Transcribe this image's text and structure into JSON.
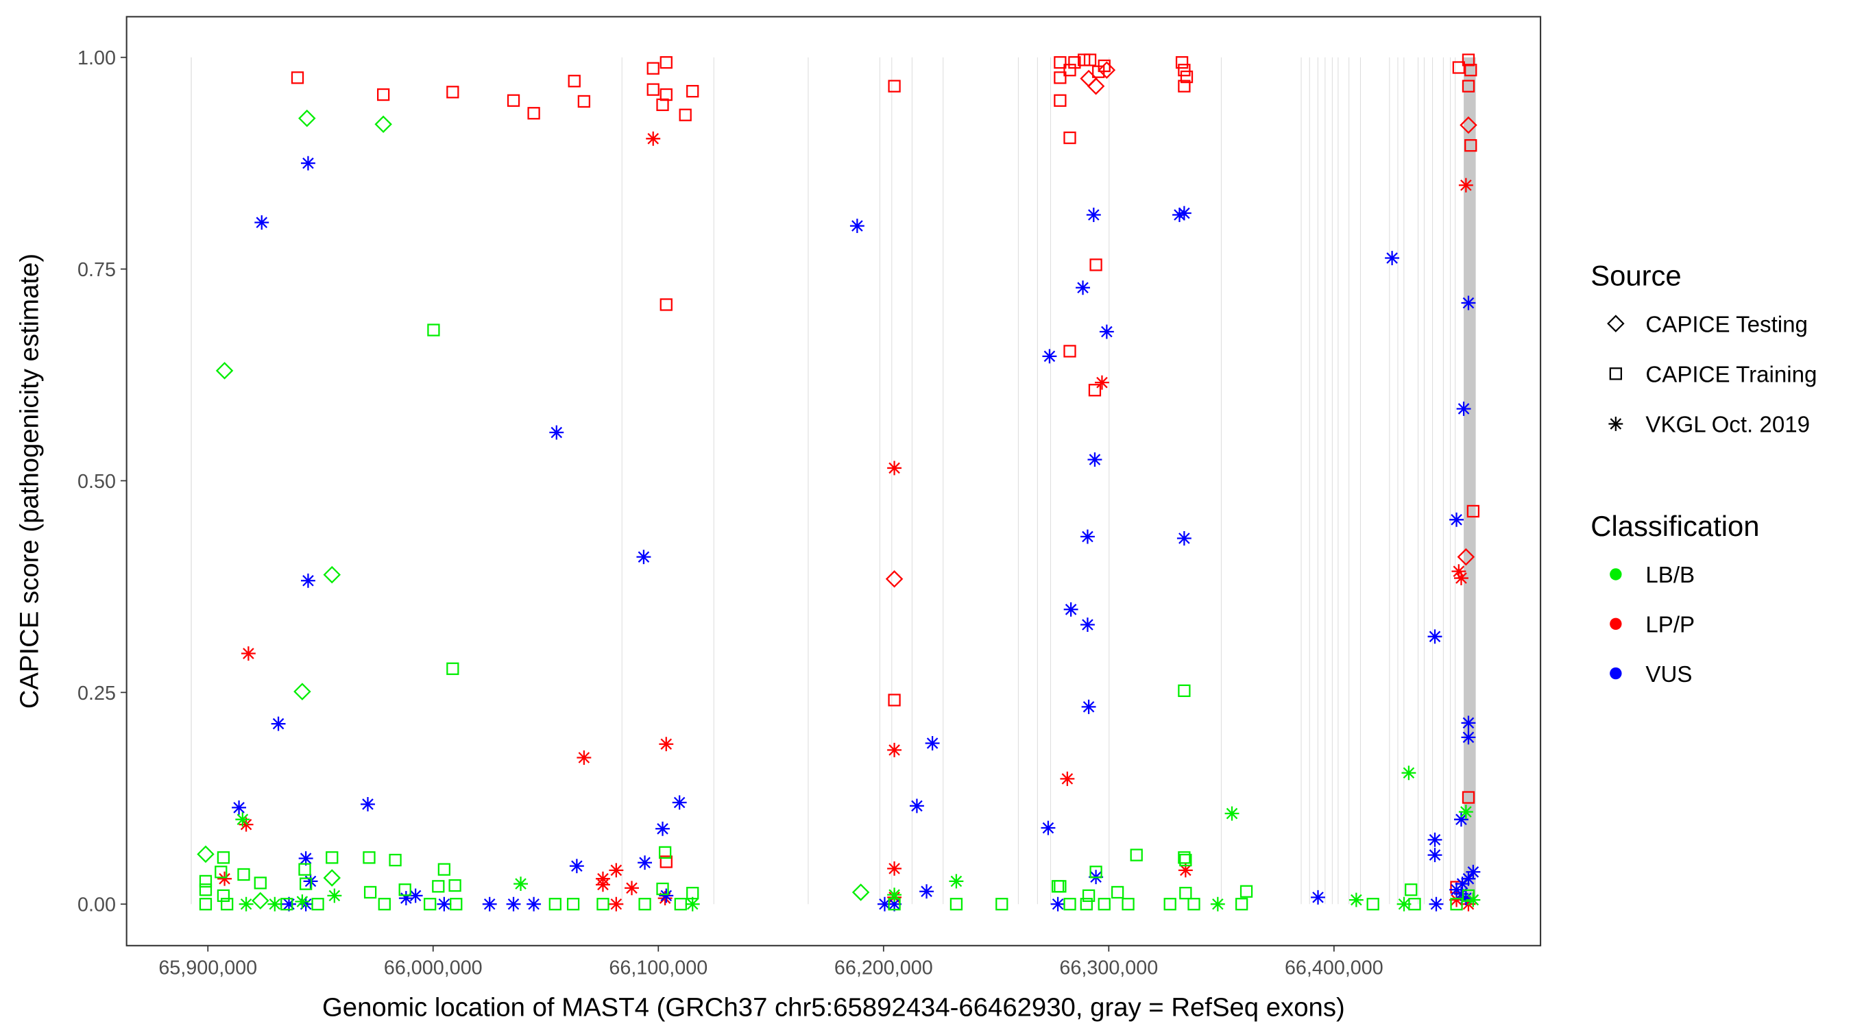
{
  "chart_data": {
    "type": "scatter",
    "title": "",
    "xlabel": "Genomic location of MAST4 (GRCh37 chr5:65892434-66462930, gray = RefSeq exons)",
    "ylabel": "CAPICE score (pathogenicity estimate)",
    "xlim": [
      65863900,
      66491700
    ],
    "ylim": [
      -0.049,
      1.048
    ],
    "x_ticks": [
      65900000,
      66000000,
      66100000,
      66200000,
      66300000,
      66400000
    ],
    "x_tick_labels": [
      "65,900,000",
      "66,000,000",
      "66,100,000",
      "66,200,000",
      "66,300,000",
      "66,400,000"
    ],
    "y_ticks": [
      0,
      0.25,
      0.5,
      0.75,
      1.0
    ],
    "y_tick_labels": [
      "0.00",
      "0.25",
      "0.50",
      "0.75",
      "1.00"
    ],
    "grid": false,
    "legend_placement": "right",
    "legend": {
      "source_title": "Source",
      "sources": [
        {
          "label": "CAPICE Testing",
          "shape": "diamond"
        },
        {
          "label": "CAPICE Training",
          "shape": "square"
        },
        {
          "label": "VKGL Oct. 2019",
          "shape": "asterisk"
        }
      ],
      "class_title": "Classification",
      "classes": [
        {
          "label": "LB/B",
          "color": "#00ee00"
        },
        {
          "label": "LP/P",
          "color": "#ff0000"
        },
        {
          "label": "VUS",
          "color": "#0000ff"
        }
      ]
    },
    "exon_color": "#bdbdbd",
    "exons": [
      [
        65892434,
        65892800
      ],
      [
        66083700,
        66084000
      ],
      [
        66124500,
        66124800
      ],
      [
        66166400,
        66166700
      ],
      [
        66198200,
        66198500
      ],
      [
        66203500,
        66203800
      ],
      [
        66212500,
        66212800
      ],
      [
        66226300,
        66226600
      ],
      [
        66259700,
        66260000
      ],
      [
        66268200,
        66268500
      ],
      [
        66274000,
        66274300
      ],
      [
        66300000,
        66300300
      ],
      [
        66349800,
        66350100
      ],
      [
        66385300,
        66385600
      ],
      [
        66389000,
        66389300
      ],
      [
        66392700,
        66393000
      ],
      [
        66395900,
        66396200
      ],
      [
        66399100,
        66399400
      ],
      [
        66401700,
        66402000
      ],
      [
        66406500,
        66406800
      ],
      [
        66411600,
        66411900
      ],
      [
        66424500,
        66424800
      ],
      [
        66428200,
        66428500
      ],
      [
        66430900,
        66431200
      ],
      [
        66437200,
        66437500
      ],
      [
        66439900,
        66440200
      ],
      [
        66443600,
        66443900
      ],
      [
        66448400,
        66448700
      ],
      [
        66451500,
        66451800
      ],
      [
        66453700,
        66454000
      ],
      [
        66457600,
        66462930
      ]
    ],
    "point_fields": [
      "position",
      "score",
      "source_index",
      "class_index"
    ],
    "points": [
      [
        65939800,
        0.976,
        1,
        1
      ],
      [
        65977900,
        0.956,
        1,
        1
      ],
      [
        66008700,
        0.959,
        1,
        1
      ],
      [
        66035700,
        0.949,
        1,
        1
      ],
      [
        66044700,
        0.934,
        1,
        1
      ],
      [
        66062700,
        0.972,
        1,
        1
      ],
      [
        66067000,
        0.948,
        1,
        1
      ],
      [
        66097700,
        0.987,
        1,
        1
      ],
      [
        66097700,
        0.962,
        1,
        1
      ],
      [
        66103500,
        0.994,
        1,
        1
      ],
      [
        66103500,
        0.956,
        1,
        1
      ],
      [
        66101900,
        0.944,
        1,
        1
      ],
      [
        66112000,
        0.932,
        1,
        1
      ],
      [
        66115200,
        0.96,
        1,
        1
      ],
      [
        66103500,
        0.708,
        1,
        1
      ],
      [
        66204800,
        0.966,
        1,
        1
      ],
      [
        66204800,
        0.241,
        1,
        1
      ],
      [
        66278400,
        0.994,
        1,
        1
      ],
      [
        66278400,
        0.976,
        1,
        1
      ],
      [
        66278400,
        0.949,
        1,
        1
      ],
      [
        66282700,
        0.985,
        1,
        1
      ],
      [
        66284800,
        0.994,
        1,
        1
      ],
      [
        66289000,
        0.997,
        1,
        1
      ],
      [
        66291700,
        0.997,
        1,
        1
      ],
      [
        66295400,
        0.983,
        1,
        1
      ],
      [
        66298000,
        0.99,
        1,
        1
      ],
      [
        66282700,
        0.905,
        1,
        1
      ],
      [
        66294300,
        0.755,
        1,
        1
      ],
      [
        66293800,
        0.607,
        1,
        1
      ],
      [
        66282700,
        0.653,
        1,
        1
      ],
      [
        66332500,
        0.994,
        1,
        1
      ],
      [
        66333500,
        0.985,
        1,
        1
      ],
      [
        66333500,
        0.966,
        1,
        1
      ],
      [
        66334600,
        0.977,
        1,
        1
      ],
      [
        66455400,
        0.988,
        1,
        1
      ],
      [
        66459700,
        0.997,
        1,
        1
      ],
      [
        66460700,
        0.985,
        1,
        1
      ],
      [
        66459700,
        0.966,
        1,
        1
      ],
      [
        66460700,
        0.896,
        1,
        1
      ],
      [
        66461800,
        0.464,
        1,
        1
      ],
      [
        66459700,
        0.126,
        1,
        1
      ],
      [
        66103500,
        0.05,
        1,
        1
      ],
      [
        66454400,
        0.02,
        1,
        1
      ],
      [
        66459700,
        0.92,
        0,
        1
      ],
      [
        66458600,
        0.41,
        0,
        1
      ],
      [
        66204800,
        0.384,
        0,
        1
      ],
      [
        66294300,
        0.966,
        0,
        1
      ],
      [
        66291100,
        0.975,
        0,
        1
      ],
      [
        66299100,
        0.985,
        0,
        1
      ],
      [
        66097700,
        0.904,
        2,
        1
      ],
      [
        66458600,
        0.849,
        2,
        1
      ],
      [
        66204800,
        0.515,
        2,
        1
      ],
      [
        65918000,
        0.296,
        2,
        1
      ],
      [
        66067000,
        0.173,
        2,
        1
      ],
      [
        66103500,
        0.189,
        2,
        1
      ],
      [
        66204800,
        0.182,
        2,
        1
      ],
      [
        66281600,
        0.148,
        2,
        1
      ],
      [
        66297000,
        0.616,
        2,
        1
      ],
      [
        66455400,
        0.393,
        2,
        1
      ],
      [
        66456500,
        0.385,
        2,
        1
      ],
      [
        65917000,
        0.094,
        2,
        1
      ],
      [
        65907400,
        0.03,
        2,
        1
      ],
      [
        66081300,
        0.04,
        2,
        1
      ],
      [
        66075400,
        0.023,
        2,
        1
      ],
      [
        66088200,
        0.019,
        2,
        1
      ],
      [
        66075400,
        0.03,
        2,
        1
      ],
      [
        66204800,
        0.042,
        2,
        1
      ],
      [
        66334100,
        0.04,
        2,
        1
      ],
      [
        66103000,
        0.007,
        2,
        1
      ],
      [
        66081300,
        0.0,
        2,
        1
      ],
      [
        66454400,
        0.005,
        2,
        1
      ],
      [
        66459700,
        0.0,
        2,
        1
      ],
      [
        66204800,
        0.008,
        2,
        1
      ],
      [
        65944500,
        0.875,
        2,
        2
      ],
      [
        65923900,
        0.805,
        2,
        2
      ],
      [
        66188300,
        0.801,
        2,
        2
      ],
      [
        66293300,
        0.814,
        2,
        2
      ],
      [
        66331400,
        0.814,
        2,
        2
      ],
      [
        66333500,
        0.816,
        2,
        2
      ],
      [
        66425800,
        0.763,
        2,
        2
      ],
      [
        66288500,
        0.728,
        2,
        2
      ],
      [
        66459700,
        0.71,
        2,
        2
      ],
      [
        66273700,
        0.647,
        2,
        2
      ],
      [
        66299100,
        0.676,
        2,
        2
      ],
      [
        66054800,
        0.557,
        2,
        2
      ],
      [
        66457600,
        0.585,
        2,
        2
      ],
      [
        66293800,
        0.525,
        2,
        2
      ],
      [
        66454400,
        0.454,
        2,
        2
      ],
      [
        66290600,
        0.434,
        2,
        2
      ],
      [
        66333500,
        0.432,
        2,
        2
      ],
      [
        66093500,
        0.41,
        2,
        2
      ],
      [
        65944500,
        0.382,
        2,
        2
      ],
      [
        66283200,
        0.348,
        2,
        2
      ],
      [
        66290600,
        0.33,
        2,
        2
      ],
      [
        66444800,
        0.316,
        2,
        2
      ],
      [
        65931300,
        0.213,
        2,
        2
      ],
      [
        66291100,
        0.233,
        2,
        2
      ],
      [
        66459700,
        0.214,
        2,
        2
      ],
      [
        66459700,
        0.197,
        2,
        2
      ],
      [
        66221700,
        0.19,
        2,
        2
      ],
      [
        66214800,
        0.116,
        2,
        2
      ],
      [
        65971000,
        0.118,
        2,
        2
      ],
      [
        66109400,
        0.12,
        2,
        2
      ],
      [
        65913800,
        0.114,
        2,
        2
      ],
      [
        66273100,
        0.09,
        2,
        2
      ],
      [
        66101900,
        0.089,
        2,
        2
      ],
      [
        66456500,
        0.1,
        2,
        2
      ],
      [
        66444800,
        0.076,
        2,
        2
      ],
      [
        66444800,
        0.058,
        2,
        2
      ],
      [
        65943500,
        0.054,
        2,
        2
      ],
      [
        66063800,
        0.045,
        2,
        2
      ],
      [
        66094000,
        0.049,
        2,
        2
      ],
      [
        66294300,
        0.032,
        2,
        2
      ],
      [
        66461800,
        0.038,
        2,
        2
      ],
      [
        65945600,
        0.027,
        2,
        2
      ],
      [
        66219100,
        0.015,
        2,
        2
      ],
      [
        66392900,
        0.008,
        2,
        2
      ],
      [
        65936000,
        0.0,
        2,
        2
      ],
      [
        65943500,
        0.0,
        2,
        2
      ],
      [
        65988000,
        0.007,
        2,
        2
      ],
      [
        65992200,
        0.01,
        2,
        2
      ],
      [
        66004900,
        0.0,
        2,
        2
      ],
      [
        66025100,
        0.0,
        2,
        2
      ],
      [
        66035700,
        0.0,
        2,
        2
      ],
      [
        66044700,
        0.0,
        2,
        2
      ],
      [
        66200500,
        0.0,
        2,
        2
      ],
      [
        66204800,
        0.0,
        2,
        2
      ],
      [
        66277400,
        0.0,
        2,
        2
      ],
      [
        66445400,
        0.0,
        2,
        2
      ],
      [
        66454400,
        0.017,
        2,
        2
      ],
      [
        66457000,
        0.024,
        2,
        2
      ],
      [
        66458600,
        0.007,
        2,
        2
      ],
      [
        66456500,
        0.012,
        2,
        2
      ],
      [
        66459700,
        0.03,
        2,
        2
      ],
      [
        66103500,
        0.01,
        2,
        2
      ],
      [
        66433200,
        0.155,
        2,
        0
      ],
      [
        66354700,
        0.107,
        2,
        0
      ],
      [
        66458600,
        0.109,
        2,
        0
      ],
      [
        65915400,
        0.1,
        2,
        0
      ],
      [
        66038900,
        0.024,
        2,
        0
      ],
      [
        66232300,
        0.027,
        2,
        0
      ],
      [
        65956200,
        0.01,
        2,
        0
      ],
      [
        65917000,
        0.0,
        2,
        0
      ],
      [
        65929700,
        0.0,
        2,
        0
      ],
      [
        66348400,
        0.0,
        2,
        0
      ],
      [
        66409900,
        0.005,
        2,
        0
      ],
      [
        66431100,
        0.0,
        2,
        0
      ],
      [
        66115200,
        0.0,
        2,
        0
      ],
      [
        66204800,
        0.011,
        2,
        0
      ],
      [
        66461800,
        0.005,
        2,
        0
      ],
      [
        65941900,
        0.003,
        2,
        0
      ],
      [
        65944000,
        0.928,
        0,
        0
      ],
      [
        65977900,
        0.921,
        0,
        0
      ],
      [
        65907400,
        0.63,
        0,
        0
      ],
      [
        65955100,
        0.389,
        0,
        0
      ],
      [
        65941900,
        0.251,
        0,
        0
      ],
      [
        65899000,
        0.059,
        0,
        0
      ],
      [
        65955100,
        0.031,
        0,
        0
      ],
      [
        66189900,
        0.014,
        0,
        0
      ],
      [
        65923300,
        0.004,
        0,
        0
      ],
      [
        66000200,
        0.678,
        1,
        0
      ],
      [
        66008700,
        0.278,
        1,
        0
      ],
      [
        66333500,
        0.252,
        1,
        0
      ],
      [
        66103000,
        0.061,
        1,
        0
      ],
      [
        65906900,
        0.055,
        1,
        0
      ],
      [
        65955100,
        0.055,
        1,
        0
      ],
      [
        65971600,
        0.055,
        1,
        0
      ],
      [
        65983200,
        0.052,
        1,
        0
      ],
      [
        66312300,
        0.058,
        1,
        0
      ],
      [
        66333500,
        0.055,
        1,
        0
      ],
      [
        66334100,
        0.052,
        1,
        0
      ],
      [
        65899000,
        0.027,
        1,
        0
      ],
      [
        65899000,
        0.017,
        1,
        0
      ],
      [
        65905800,
        0.038,
        1,
        0
      ],
      [
        65915900,
        0.035,
        1,
        0
      ],
      [
        65923300,
        0.025,
        1,
        0
      ],
      [
        65943000,
        0.041,
        1,
        0
      ],
      [
        65943500,
        0.024,
        1,
        0
      ],
      [
        66004900,
        0.041,
        1,
        0
      ],
      [
        66009700,
        0.022,
        1,
        0
      ],
      [
        66002300,
        0.021,
        1,
        0
      ],
      [
        65972100,
        0.014,
        1,
        0
      ],
      [
        65987500,
        0.017,
        1,
        0
      ],
      [
        66277400,
        0.021,
        1,
        0
      ],
      [
        66278400,
        0.021,
        1,
        0
      ],
      [
        66294300,
        0.038,
        1,
        0
      ],
      [
        66303900,
        0.014,
        1,
        0
      ],
      [
        66361100,
        0.015,
        1,
        0
      ],
      [
        66434200,
        0.017,
        1,
        0
      ],
      [
        66334100,
        0.013,
        1,
        0
      ],
      [
        66101900,
        0.018,
        1,
        0
      ],
      [
        65899000,
        0.0,
        1,
        0
      ],
      [
        65906900,
        0.01,
        1,
        0
      ],
      [
        65908500,
        0.0,
        1,
        0
      ],
      [
        65935000,
        0.0,
        1,
        0
      ],
      [
        65948800,
        0.0,
        1,
        0
      ],
      [
        65978400,
        0.0,
        1,
        0
      ],
      [
        65998600,
        0.0,
        1,
        0
      ],
      [
        66010200,
        0.0,
        1,
        0
      ],
      [
        66054200,
        0.0,
        1,
        0
      ],
      [
        66062200,
        0.0,
        1,
        0
      ],
      [
        66075400,
        0.0,
        1,
        0
      ],
      [
        66094000,
        0.0,
        1,
        0
      ],
      [
        66109900,
        0.0,
        1,
        0
      ],
      [
        66115200,
        0.013,
        1,
        0
      ],
      [
        66204800,
        0.0,
        1,
        0
      ],
      [
        66232300,
        0.0,
        1,
        0
      ],
      [
        66252500,
        0.0,
        1,
        0
      ],
      [
        66282700,
        0.0,
        1,
        0
      ],
      [
        66290100,
        0.0,
        1,
        0
      ],
      [
        66298000,
        0.0,
        1,
        0
      ],
      [
        66308600,
        0.0,
        1,
        0
      ],
      [
        66327200,
        0.0,
        1,
        0
      ],
      [
        66337800,
        0.0,
        1,
        0
      ],
      [
        66359000,
        0.0,
        1,
        0
      ],
      [
        66417300,
        0.0,
        1,
        0
      ],
      [
        66435800,
        0.0,
        1,
        0
      ],
      [
        66454400,
        0.0,
        1,
        0
      ],
      [
        66291100,
        0.01,
        1,
        0
      ],
      [
        66459700,
        0.01,
        1,
        0
      ]
    ]
  }
}
